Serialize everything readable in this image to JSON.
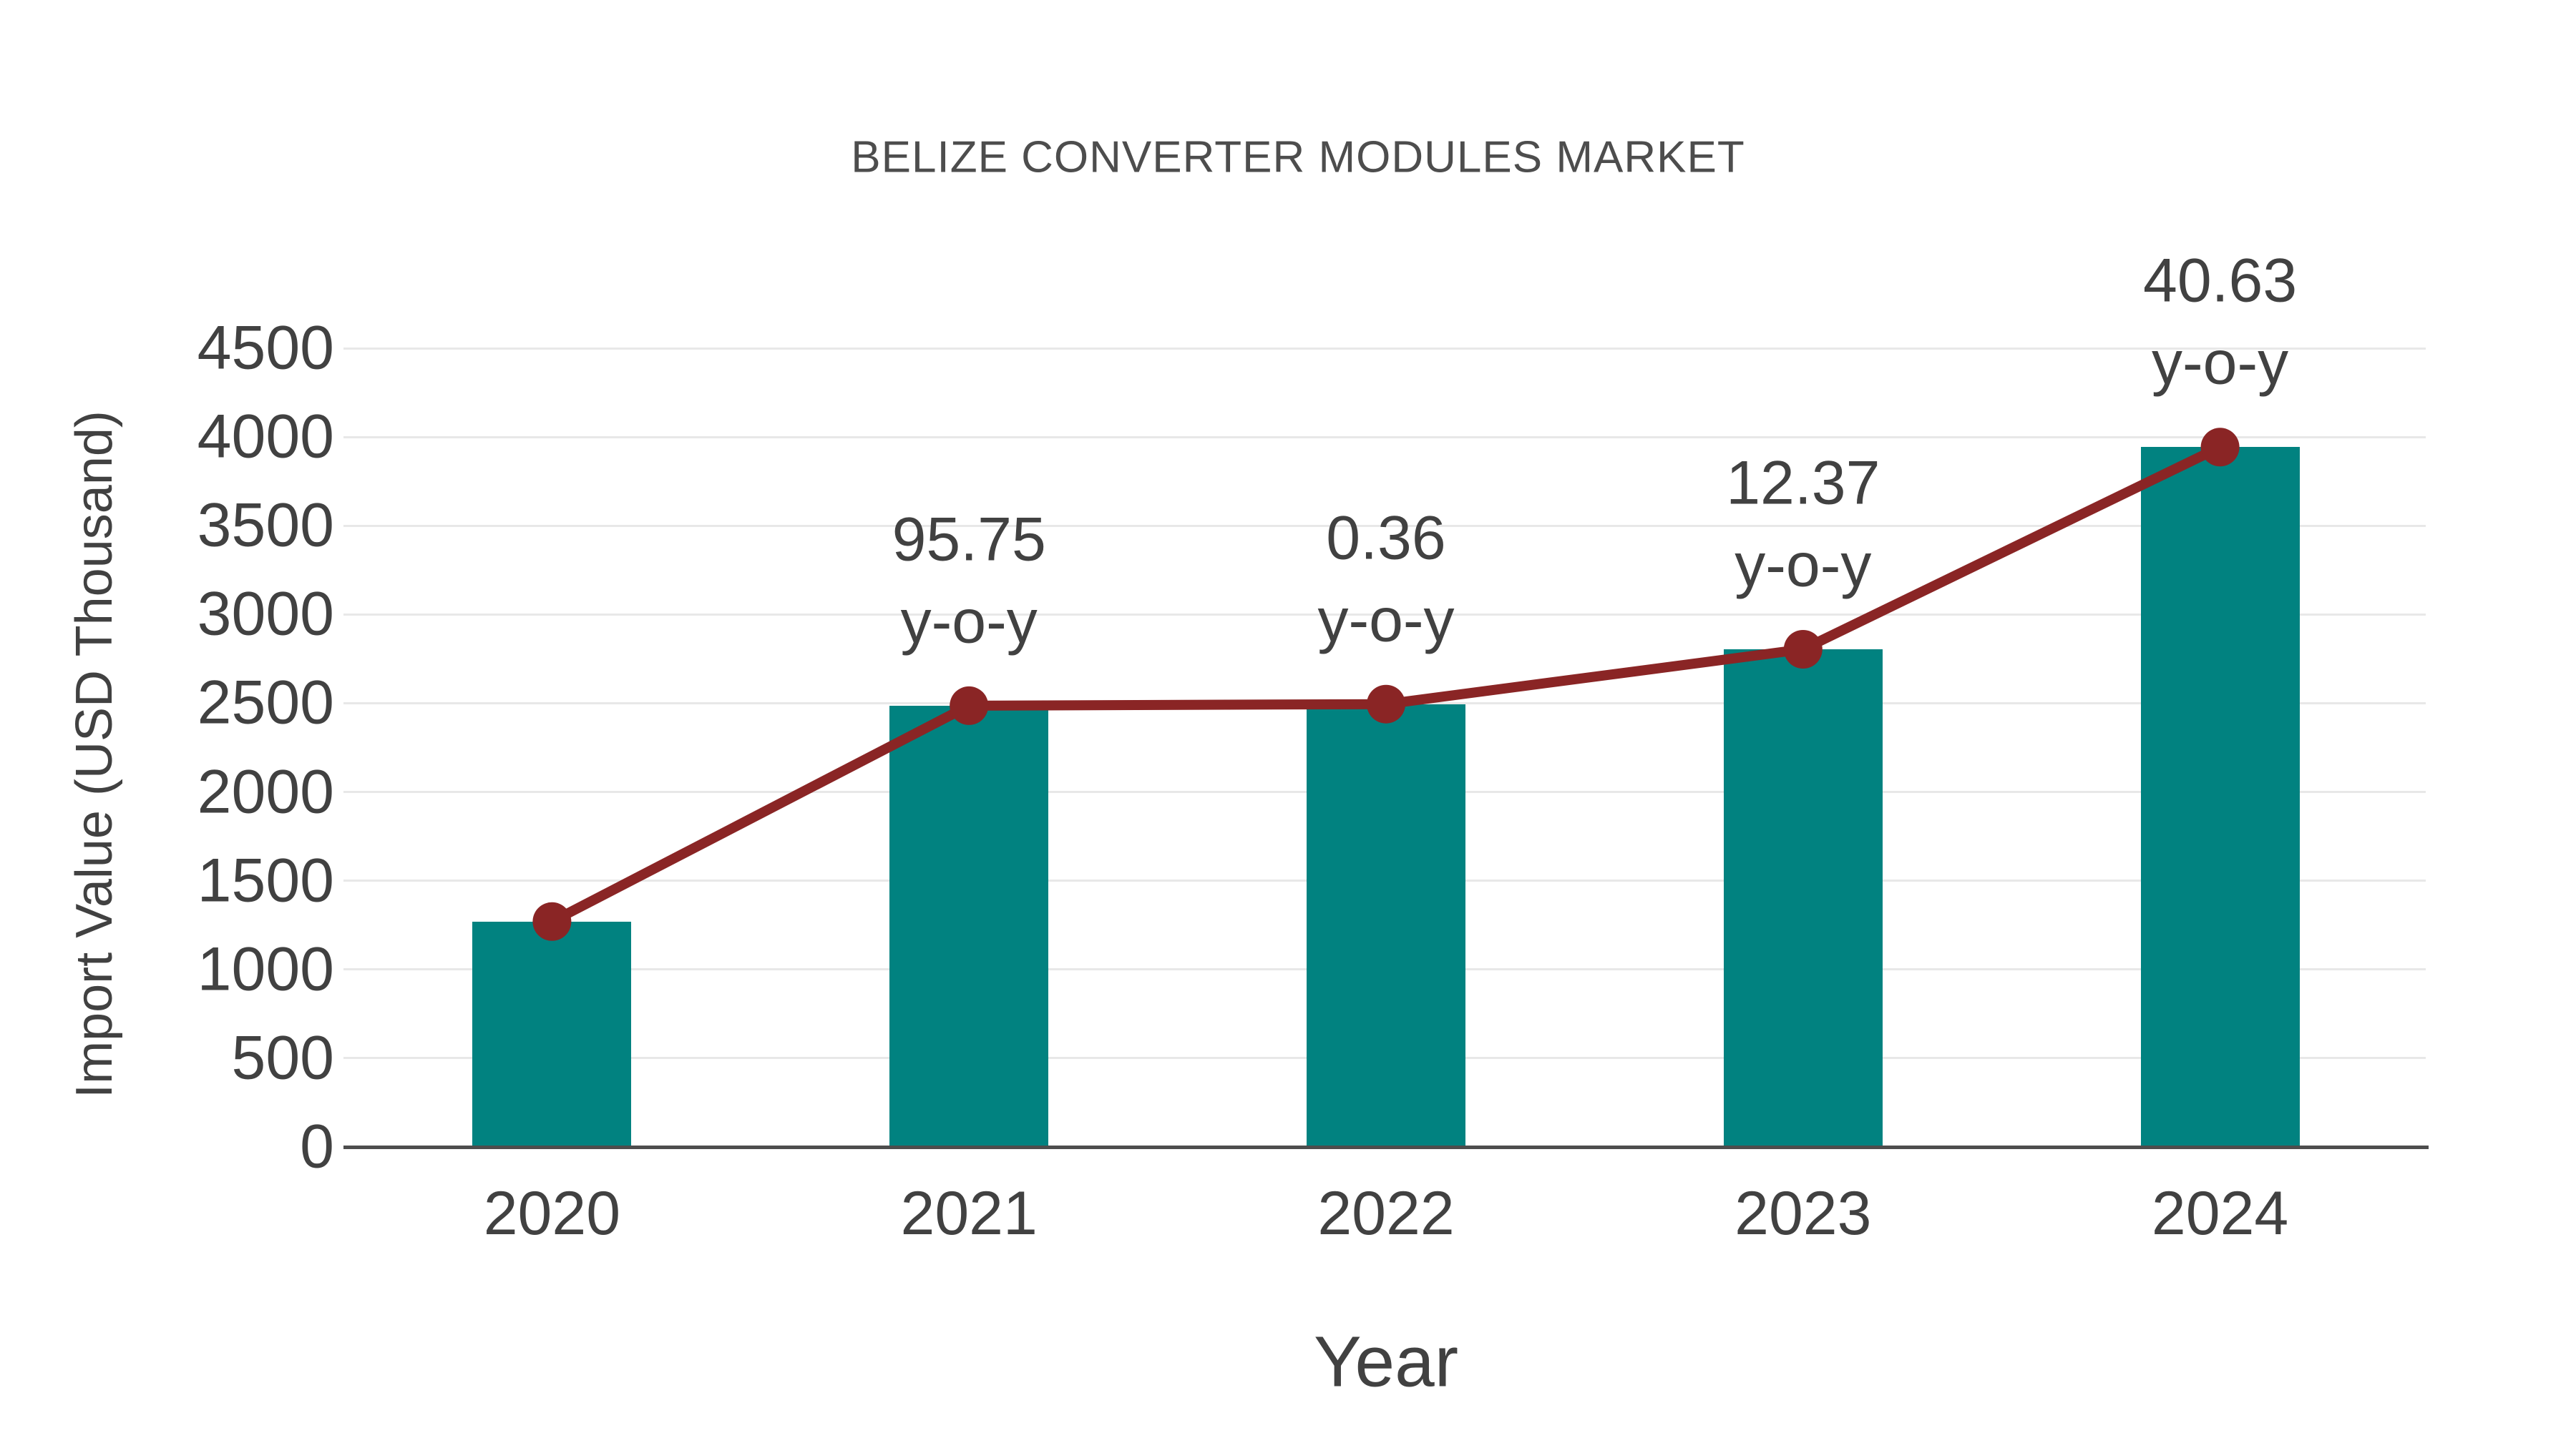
{
  "chart_data": {
    "type": "bar",
    "title": "BELIZE CONVERTER MODULES MARKET",
    "xlabel": "Year",
    "ylabel": "Import Value (USD Thousand)",
    "categories": [
      "2020",
      "2021",
      "2022",
      "2023",
      "2024"
    ],
    "series": [
      {
        "name": "Import Value bars",
        "type": "bar",
        "values": [
          1270,
          2486,
          2495,
          2804,
          3943
        ]
      },
      {
        "name": "Import Value trend line",
        "type": "line",
        "values": [
          1270,
          2486,
          2495,
          2804,
          3943
        ]
      }
    ],
    "annotations": [
      {
        "category": "2021",
        "value": "95.75",
        "label": "y-o-y"
      },
      {
        "category": "2022",
        "value": "0.36",
        "label": "y-o-y"
      },
      {
        "category": "2023",
        "value": "12.37",
        "label": "y-o-y"
      },
      {
        "category": "2024",
        "value": "40.63",
        "label": "y-o-y"
      }
    ],
    "ylim": [
      0,
      4500
    ],
    "yticks": [
      0,
      500,
      1000,
      1500,
      2000,
      2500,
      3000,
      3500,
      4000,
      4500
    ],
    "grid": true,
    "legend": "none",
    "colors": {
      "bar": "#018280",
      "line": "#8A2525",
      "grid": "#e8e8e8",
      "axis": "#4d4d4d",
      "text": "#414141",
      "title_text": "#4d4d4d"
    }
  }
}
